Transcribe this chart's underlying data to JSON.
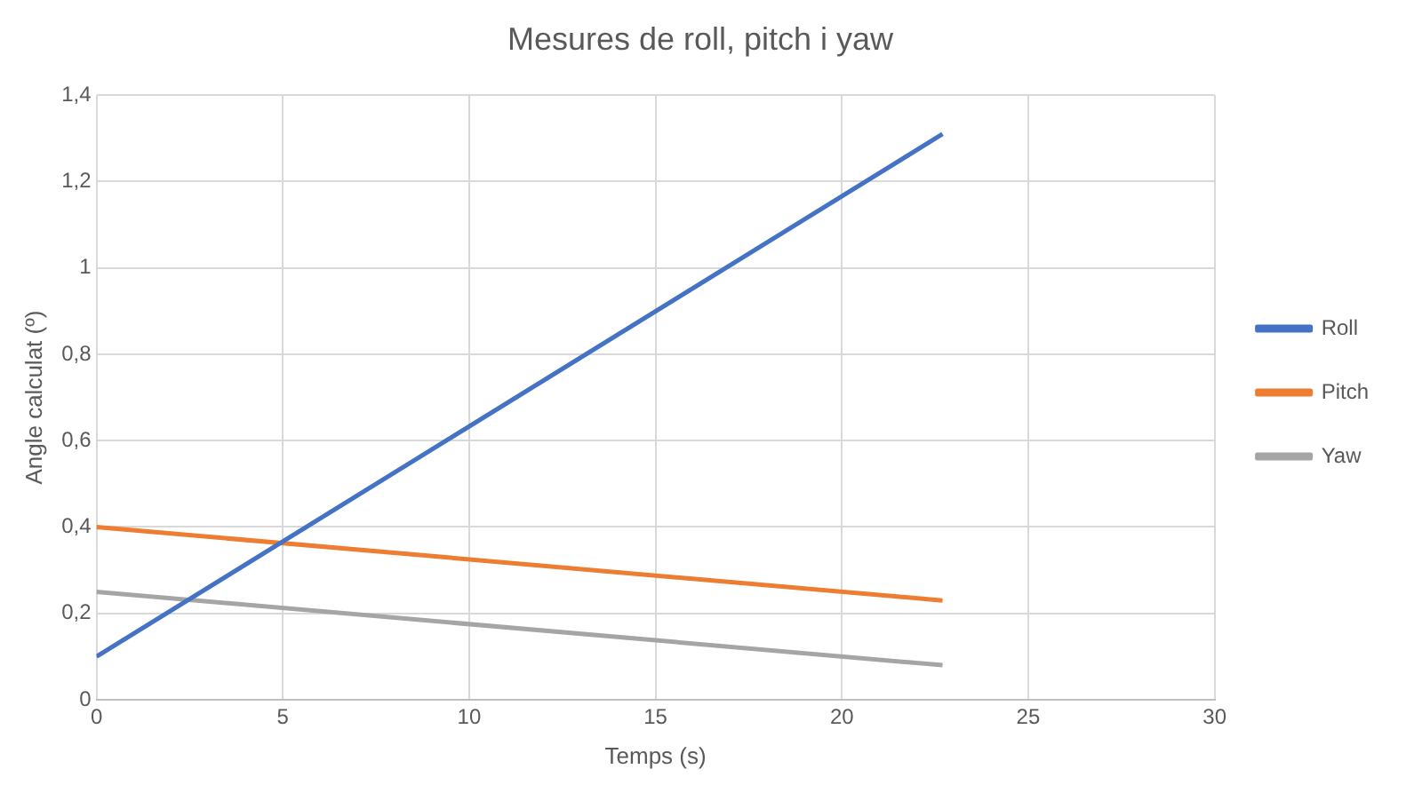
{
  "chart_data": {
    "type": "line",
    "title": "Mesures de roll, pitch i yaw",
    "xlabel": "Temps (s)",
    "ylabel": "Angle calculat (º)",
    "x": [
      0,
      22.7
    ],
    "series": [
      {
        "name": "Roll",
        "color": "#4472c4",
        "values": [
          0.1,
          1.31
        ]
      },
      {
        "name": "Pitch",
        "color": "#ed7d31",
        "values": [
          0.4,
          0.23
        ]
      },
      {
        "name": "Yaw",
        "color": "#a5a5a5",
        "values": [
          0.25,
          0.08
        ]
      }
    ],
    "xlim": [
      0,
      30
    ],
    "xticks": [
      0,
      5,
      10,
      15,
      20,
      25,
      30
    ],
    "ylim": [
      0,
      1.4
    ],
    "yticks": [
      0,
      {
        "value": 0.2,
        "label": "0,2"
      },
      {
        "value": 0.4,
        "label": "0,4"
      },
      {
        "value": 0.6,
        "label": "0,6"
      },
      {
        "value": 0.8,
        "label": "0,8"
      },
      1,
      {
        "value": 1.2,
        "label": "1,2"
      },
      {
        "value": 1.4,
        "label": "1,4"
      }
    ],
    "grid": true,
    "legend": "right",
    "marker": "none",
    "line_style": "solid"
  }
}
